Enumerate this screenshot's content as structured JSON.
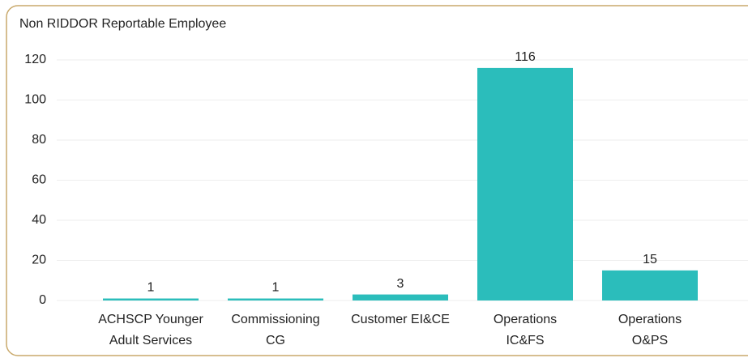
{
  "chart_data": {
    "type": "bar",
    "title": "Non RIDDOR Reportable Employee",
    "categories": [
      [
        "ACHSCP Younger",
        "Adult Services"
      ],
      [
        "Commissioning",
        "CG"
      ],
      [
        "Customer EI&CE"
      ],
      [
        "Operations",
        "IC&FS"
      ],
      [
        "Operations",
        "O&PS"
      ]
    ],
    "values": [
      1,
      1,
      3,
      116,
      15
    ],
    "color": "#2bbdbb",
    "ylim": [
      0,
      120
    ],
    "yticks": [
      0,
      20,
      40,
      60,
      80,
      100,
      120
    ],
    "grid": true
  }
}
